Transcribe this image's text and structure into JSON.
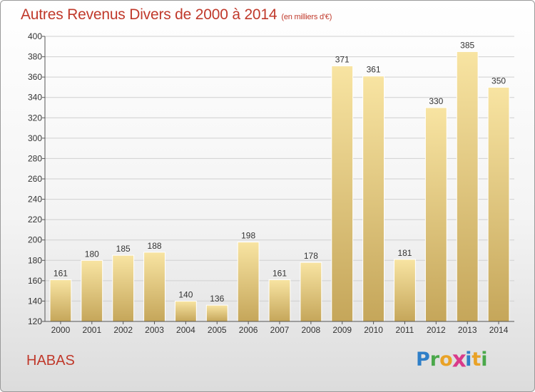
{
  "title": "Autres Revenus Divers de 2000 à 2014",
  "subtitle": "(en milliers d'€)",
  "location": "HABAS",
  "logo": {
    "letters": [
      "P",
      "r",
      "o",
      "x",
      "i",
      "t",
      "i"
    ],
    "colors": [
      "#2f7fc8",
      "#4aa84a",
      "#e9a227",
      "#d93a8a",
      "#2f7fc8",
      "#e9a227",
      "#4aa84a"
    ]
  },
  "colors": {
    "bar_light": "#f8e4a2",
    "bar_dark": "#c5a65a",
    "title": "#c0392b"
  },
  "chart_data": {
    "type": "bar",
    "title": "Autres Revenus Divers de 2000 à 2014",
    "subtitle": "(en milliers d'€)",
    "xlabel": "",
    "ylabel": "",
    "categories": [
      "2000",
      "2001",
      "2002",
      "2003",
      "2004",
      "2005",
      "2006",
      "2007",
      "2008",
      "2009",
      "2010",
      "2011",
      "2012",
      "2013",
      "2014"
    ],
    "values": [
      161,
      180,
      185,
      188,
      140,
      136,
      198,
      161,
      178,
      371,
      361,
      181,
      330,
      385,
      350
    ],
    "ylim": [
      120,
      400
    ],
    "yticks": [
      120,
      140,
      160,
      180,
      200,
      220,
      240,
      260,
      280,
      300,
      320,
      340,
      360,
      380,
      400
    ],
    "grid": true,
    "legend": "none"
  }
}
